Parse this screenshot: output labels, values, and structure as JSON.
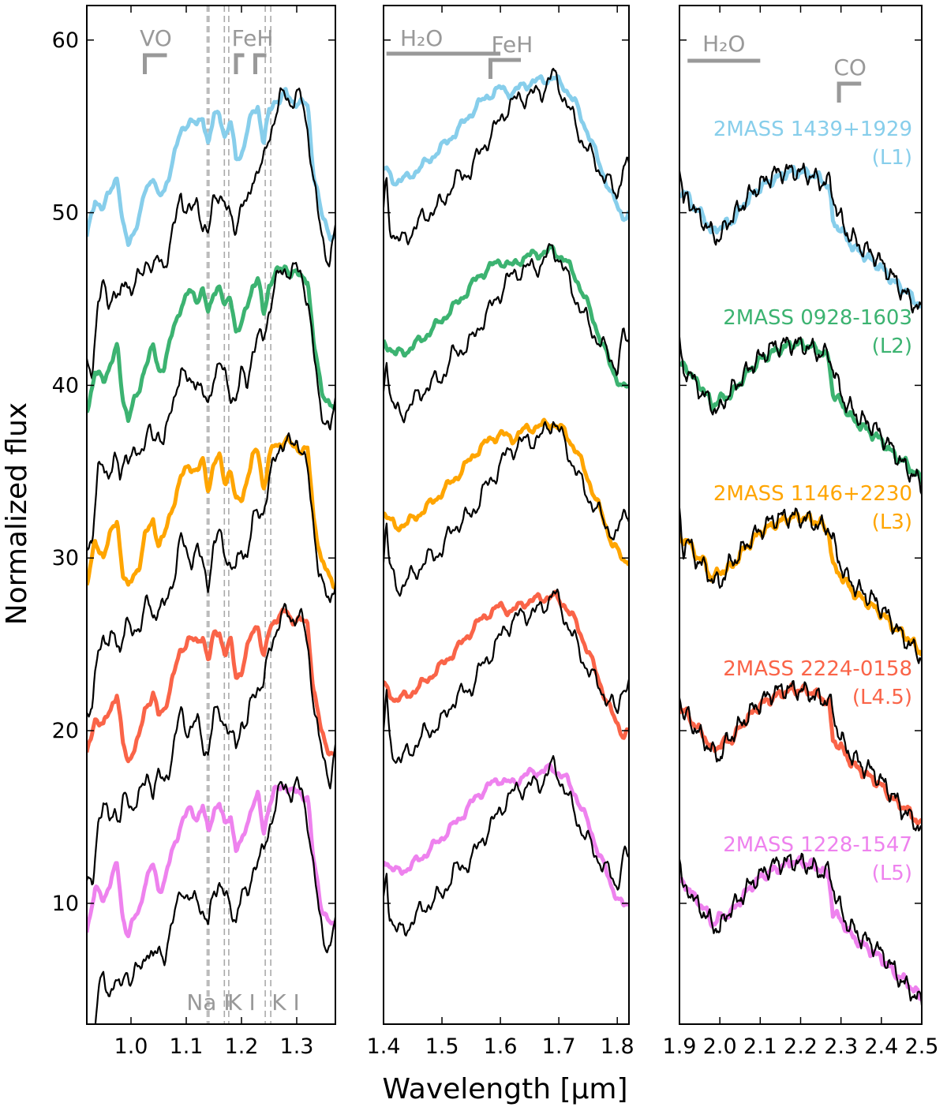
{
  "chart_data": {
    "type": "line",
    "ylabel": "Normalized flux",
    "xlabel": "Wavelength [μm]",
    "ylim": [
      3,
      62
    ],
    "yticks": [
      10,
      20,
      30,
      40,
      50,
      60
    ],
    "ytick_labels": [
      "10",
      "20",
      "30",
      "40",
      "50",
      "60"
    ],
    "model_color": "#000000",
    "feature_color": "#999999",
    "objects": [
      {
        "name": "2MASS 1439+1929",
        "spt": "(L1)",
        "color": "#87ceeb",
        "offset": 40
      },
      {
        "name": "2MASS 0928-1603",
        "spt": "(L2)",
        "color": "#3cb371",
        "offset": 30
      },
      {
        "name": "2MASS 1146+2230",
        "spt": "(L3)",
        "color": "#ffa500",
        "offset": 20
      },
      {
        "name": "2MASS 2224-0158",
        "spt": "(L4.5)",
        "color": "#fa6448",
        "offset": 10
      },
      {
        "name": "2MASS 1228-1547",
        "spt": "(L5)",
        "color": "#ee82ee",
        "offset": 0
      }
    ],
    "panels": [
      {
        "band": "J",
        "xlim": [
          0.92,
          1.37
        ],
        "xticks": [
          1.0,
          1.1,
          1.2,
          1.3
        ],
        "xtick_labels": [
          "1.0",
          "1.1",
          "1.2",
          "1.3"
        ],
        "observed_template": [
          [
            0.92,
            8.5
          ],
          [
            0.935,
            10.8
          ],
          [
            0.95,
            10.2
          ],
          [
            0.965,
            11.5
          ],
          [
            0.975,
            12.2
          ],
          [
            0.985,
            9.2
          ],
          [
            0.995,
            8.2
          ],
          [
            1.005,
            9.0
          ],
          [
            1.015,
            9.6
          ],
          [
            1.025,
            11.2
          ],
          [
            1.04,
            12.2
          ],
          [
            1.05,
            10.8
          ],
          [
            1.06,
            11.2
          ],
          [
            1.075,
            13.0
          ],
          [
            1.09,
            14.6
          ],
          [
            1.105,
            15.4
          ],
          [
            1.12,
            15.0
          ],
          [
            1.13,
            15.6
          ],
          [
            1.14,
            14.0
          ],
          [
            1.15,
            15.5
          ],
          [
            1.16,
            15.8
          ],
          [
            1.17,
            14.4
          ],
          [
            1.18,
            15.2
          ],
          [
            1.19,
            13.2
          ],
          [
            1.2,
            13.4
          ],
          [
            1.21,
            14.6
          ],
          [
            1.22,
            15.8
          ],
          [
            1.23,
            16.2
          ],
          [
            1.24,
            14.0
          ],
          [
            1.25,
            15.8
          ],
          [
            1.26,
            16.5
          ],
          [
            1.27,
            16.6
          ],
          [
            1.28,
            16.9
          ],
          [
            1.29,
            16.5
          ],
          [
            1.3,
            16.4
          ],
          [
            1.31,
            16.3
          ],
          [
            1.32,
            16.2
          ],
          [
            1.33,
            12.5
          ],
          [
            1.345,
            9.8
          ],
          [
            1.36,
            8.8
          ],
          [
            1.37,
            8.5
          ]
        ],
        "model_template": [
          [
            0.93,
            1.0
          ],
          [
            0.94,
            4.8
          ],
          [
            0.95,
            5.6
          ],
          [
            0.96,
            4.8
          ],
          [
            0.97,
            5.6
          ],
          [
            0.98,
            4.8
          ],
          [
            0.99,
            6.2
          ],
          [
            1.0,
            5.6
          ],
          [
            1.01,
            6.0
          ],
          [
            1.02,
            6.4
          ],
          [
            1.03,
            7.5
          ],
          [
            1.04,
            6.6
          ],
          [
            1.05,
            7.3
          ],
          [
            1.06,
            7.0
          ],
          [
            1.07,
            8.0
          ],
          [
            1.08,
            9.4
          ],
          [
            1.09,
            11.2
          ],
          [
            1.1,
            10.2
          ],
          [
            1.11,
            10.0
          ],
          [
            1.12,
            10.6
          ],
          [
            1.13,
            9.4
          ],
          [
            1.14,
            8.6
          ],
          [
            1.15,
            10.8
          ],
          [
            1.16,
            11.3
          ],
          [
            1.17,
            10.4
          ],
          [
            1.18,
            9.6
          ],
          [
            1.19,
            9.2
          ],
          [
            1.2,
            10.6
          ],
          [
            1.21,
            10.2
          ],
          [
            1.22,
            12.0
          ],
          [
            1.23,
            12.6
          ],
          [
            1.24,
            12.8
          ],
          [
            1.25,
            14.4
          ],
          [
            1.26,
            15.6
          ],
          [
            1.27,
            16.6
          ],
          [
            1.28,
            16.8
          ],
          [
            1.29,
            16.4
          ],
          [
            1.3,
            16.8
          ],
          [
            1.31,
            16.4
          ],
          [
            1.32,
            14.8
          ],
          [
            1.33,
            12.0
          ],
          [
            1.34,
            9.5
          ],
          [
            1.35,
            8.0
          ],
          [
            1.36,
            7.2
          ],
          [
            1.37,
            9.0
          ]
        ],
        "line_markers": [
          1.138,
          1.141,
          1.169,
          1.177,
          1.243,
          1.253
        ],
        "features_top": [
          {
            "label": "VO",
            "x1": 1.025,
            "x2": 1.065
          },
          {
            "label": "FeH",
            "x1": 1.19,
            "x2": 1.205
          },
          {
            "label": "",
            "x1": 1.225,
            "x2": 1.245
          }
        ],
        "features_bottom": [
          {
            "label": "Na I",
            "x": 1.14
          },
          {
            "label": "K I",
            "x": 1.2
          },
          {
            "label": "K I",
            "x": 1.28
          }
        ]
      },
      {
        "band": "H",
        "xlim": [
          1.4,
          1.82
        ],
        "xticks": [
          1.4,
          1.5,
          1.6,
          1.7,
          1.8
        ],
        "xtick_labels": [
          "1.4",
          "1.5",
          "1.6",
          "1.7",
          "1.8"
        ],
        "observed_template": [
          [
            1.4,
            12.6
          ],
          [
            1.42,
            11.8
          ],
          [
            1.44,
            12.0
          ],
          [
            1.47,
            12.8
          ],
          [
            1.5,
            13.8
          ],
          [
            1.53,
            14.9
          ],
          [
            1.56,
            16.2
          ],
          [
            1.58,
            16.8
          ],
          [
            1.6,
            17.2
          ],
          [
            1.62,
            16.9
          ],
          [
            1.64,
            17.4
          ],
          [
            1.66,
            17.6
          ],
          [
            1.69,
            17.8
          ],
          [
            1.71,
            17.3
          ],
          [
            1.73,
            16.2
          ],
          [
            1.75,
            14.6
          ],
          [
            1.77,
            12.8
          ],
          [
            1.79,
            11.0
          ],
          [
            1.81,
            9.8
          ],
          [
            1.82,
            9.9
          ]
        ],
        "model_template": [
          [
            1.4,
            10.0
          ],
          [
            1.405,
            12.0
          ],
          [
            1.41,
            9.5
          ],
          [
            1.42,
            8.5
          ],
          [
            1.43,
            8.3
          ],
          [
            1.45,
            9.0
          ],
          [
            1.47,
            9.8
          ],
          [
            1.5,
            10.5
          ],
          [
            1.52,
            11.8
          ],
          [
            1.55,
            12.5
          ],
          [
            1.57,
            13.8
          ],
          [
            1.59,
            14.8
          ],
          [
            1.61,
            16.0
          ],
          [
            1.63,
            16.6
          ],
          [
            1.65,
            16.8
          ],
          [
            1.67,
            17.0
          ],
          [
            1.69,
            18.0
          ],
          [
            1.7,
            17.4
          ],
          [
            1.72,
            15.8
          ],
          [
            1.74,
            14.2
          ],
          [
            1.76,
            13.0
          ],
          [
            1.78,
            12.0
          ],
          [
            1.8,
            11.0
          ],
          [
            1.81,
            12.8
          ],
          [
            1.82,
            12.5
          ]
        ],
        "features_top": [
          {
            "label": "H₂O",
            "x1": 1.405,
            "x2": 1.6
          },
          {
            "label": "FeH",
            "x1": 1.583,
            "x2": 1.635
          }
        ]
      },
      {
        "band": "K",
        "xlim": [
          1.9,
          2.5
        ],
        "xticks": [
          1.9,
          2.0,
          2.1,
          2.2,
          2.3,
          2.4,
          2.5
        ],
        "xtick_labels": [
          "1.9",
          "2.0",
          "2.1",
          "2.2",
          "2.3",
          "2.4",
          "2.5"
        ],
        "observed_template": [
          [
            1.9,
            11.2
          ],
          [
            1.92,
            11.0
          ],
          [
            1.94,
            10.2
          ],
          [
            1.96,
            9.8
          ],
          [
            1.98,
            8.8
          ],
          [
            2.0,
            9.2
          ],
          [
            2.03,
            9.5
          ],
          [
            2.06,
            10.5
          ],
          [
            2.1,
            11.5
          ],
          [
            2.14,
            12.0
          ],
          [
            2.18,
            12.4
          ],
          [
            2.22,
            12.3
          ],
          [
            2.25,
            12.0
          ],
          [
            2.27,
            11.5
          ],
          [
            2.28,
            9.5
          ],
          [
            2.3,
            9.0
          ],
          [
            2.33,
            8.0
          ],
          [
            2.36,
            7.5
          ],
          [
            2.4,
            6.8
          ],
          [
            2.43,
            6.0
          ],
          [
            2.46,
            5.5
          ],
          [
            2.48,
            5.0
          ],
          [
            2.5,
            4.5
          ]
        ],
        "model_template": [
          [
            1.9,
            12.5
          ],
          [
            1.91,
            10.5
          ],
          [
            1.92,
            11.0
          ],
          [
            1.94,
            10.0
          ],
          [
            1.96,
            9.5
          ],
          [
            1.98,
            8.8
          ],
          [
            2.0,
            8.5
          ],
          [
            2.02,
            9.5
          ],
          [
            2.04,
            10.0
          ],
          [
            2.06,
            10.6
          ],
          [
            2.08,
            11.2
          ],
          [
            2.1,
            11.6
          ],
          [
            2.13,
            12.2
          ],
          [
            2.16,
            12.4
          ],
          [
            2.19,
            12.4
          ],
          [
            2.22,
            12.2
          ],
          [
            2.25,
            11.8
          ],
          [
            2.27,
            11.8
          ],
          [
            2.29,
            10.2
          ],
          [
            2.31,
            9.0
          ],
          [
            2.33,
            8.5
          ],
          [
            2.35,
            8.0
          ],
          [
            2.38,
            7.6
          ],
          [
            2.41,
            6.8
          ],
          [
            2.43,
            6.2
          ],
          [
            2.45,
            5.5
          ],
          [
            2.47,
            5.0
          ],
          [
            2.49,
            4.5
          ],
          [
            2.5,
            4.2
          ]
        ],
        "features_top": [
          {
            "label": "H₂O",
            "x1": 1.92,
            "x2": 2.1
          },
          {
            "label": "CO",
            "x1": 2.295,
            "x2": 2.35
          }
        ]
      }
    ]
  }
}
